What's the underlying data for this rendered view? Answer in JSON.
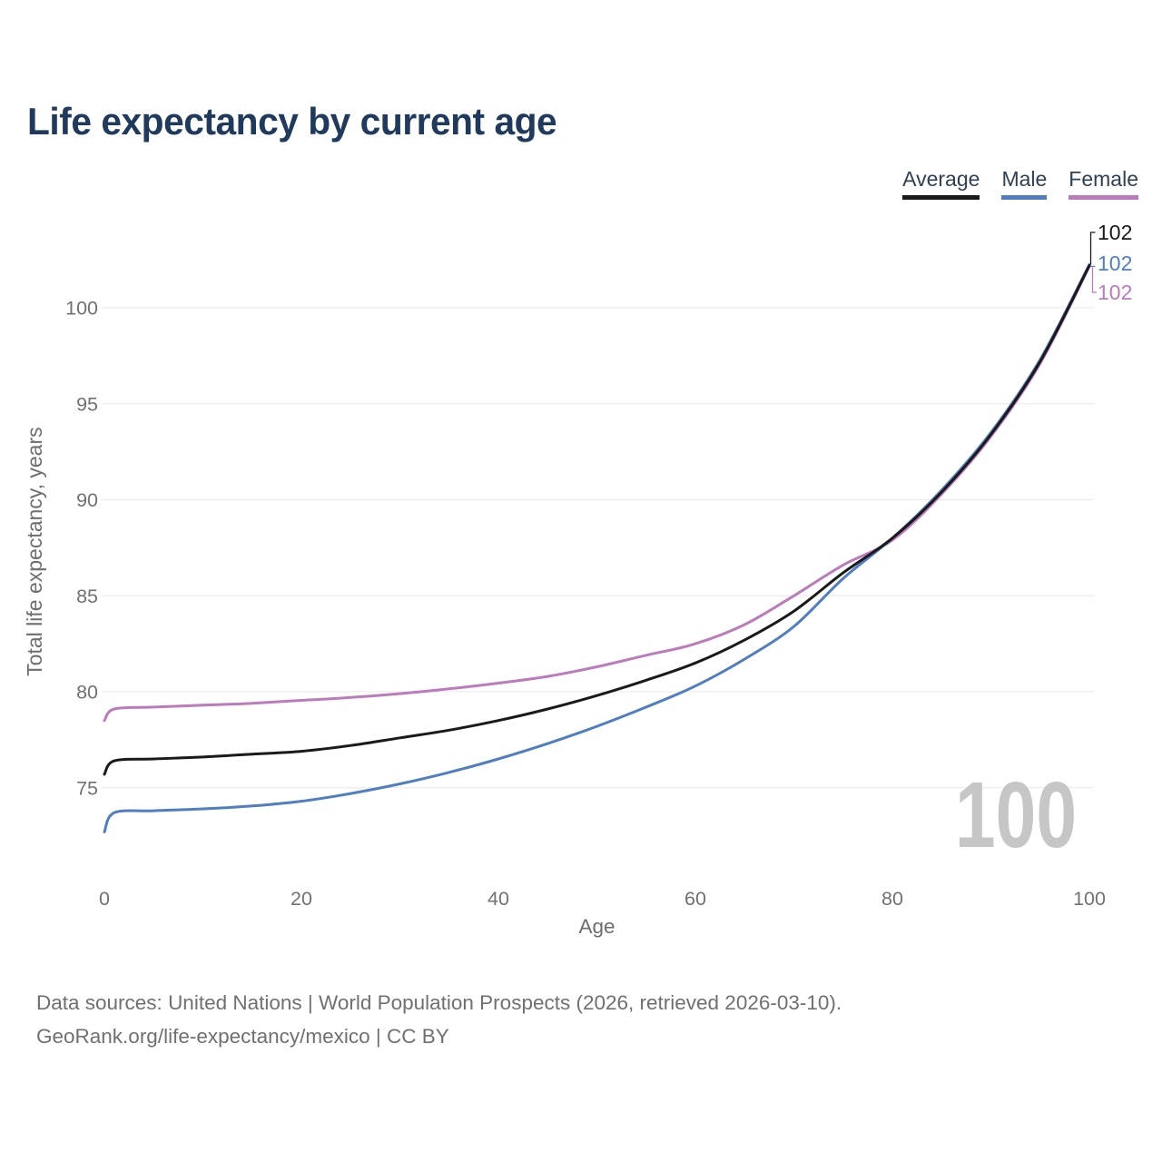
{
  "title": "Life expectancy by current age",
  "legend": {
    "items": [
      {
        "label": "Average",
        "color": "#1a1a1a"
      },
      {
        "label": "Male",
        "color": "#4f7ec3"
      },
      {
        "label": "Female",
        "color": "#bc7bbc"
      }
    ]
  },
  "end_labels": [
    {
      "text": "102",
      "color": "#1a1a1a"
    },
    {
      "text": "102",
      "color": "#4f7ec3"
    },
    {
      "text": "102",
      "color": "#bc7bbc"
    }
  ],
  "watermark": "100",
  "footer": {
    "line1": "Data sources: United Nations | World Population Prospects (2026, retrieved 2026-03-10).",
    "line2": "GeoRank.org/life-expectancy/mexico | CC BY"
  },
  "chart_data": {
    "type": "line",
    "title": "Life expectancy by current age",
    "xlabel": "Age",
    "ylabel": "Total life expectancy, years",
    "x_ticks": [
      0,
      20,
      40,
      60,
      80,
      100
    ],
    "y_ticks": [
      75,
      80,
      85,
      90,
      95,
      100
    ],
    "xlim": [
      0,
      100.5
    ],
    "ylim": [
      72.3,
      102.5
    ],
    "grid": "horizontal",
    "legend_position": "top-right",
    "x": [
      0,
      1,
      5,
      10,
      15,
      20,
      25,
      30,
      35,
      40,
      45,
      50,
      55,
      60,
      65,
      70,
      75,
      80,
      85,
      90,
      95,
      100
    ],
    "series": [
      {
        "name": "Female",
        "color": "#bc7bbc",
        "values": [
          78.5,
          79.1,
          79.2,
          79.3,
          79.4,
          79.55,
          79.7,
          79.9,
          80.15,
          80.45,
          80.8,
          81.3,
          81.9,
          82.5,
          83.5,
          85.0,
          86.6,
          87.9,
          90.3,
          93.3,
          97.1,
          102.15
        ]
      },
      {
        "name": "Male",
        "color": "#4f7ec3",
        "values": [
          72.7,
          73.7,
          73.8,
          73.9,
          74.05,
          74.3,
          74.7,
          75.2,
          75.8,
          76.5,
          77.3,
          78.2,
          79.2,
          80.3,
          81.7,
          83.4,
          85.9,
          88.0,
          90.5,
          93.5,
          97.3,
          102.25
        ]
      },
      {
        "name": "Average",
        "color": "#1a1a1a",
        "values": [
          75.7,
          76.4,
          76.5,
          76.6,
          76.75,
          76.9,
          77.2,
          77.6,
          78.0,
          78.5,
          79.1,
          79.8,
          80.6,
          81.5,
          82.7,
          84.2,
          86.2,
          88.0,
          90.4,
          93.4,
          97.2,
          102.2
        ]
      }
    ]
  }
}
